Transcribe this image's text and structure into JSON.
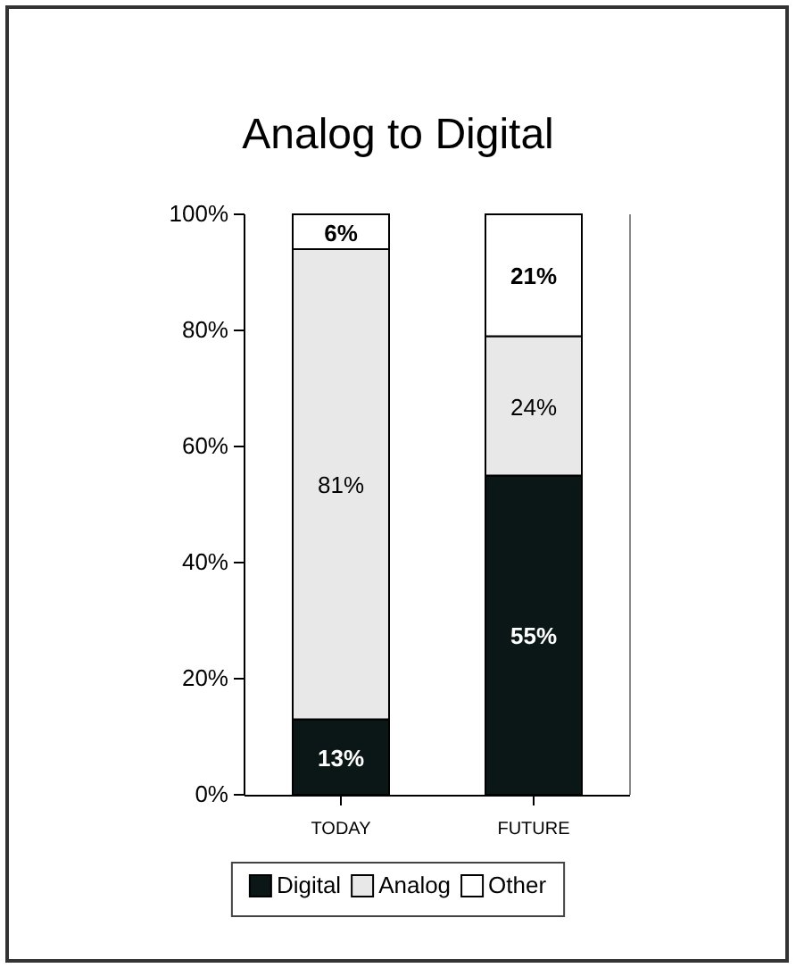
{
  "chart_data": {
    "type": "bar",
    "title": "Analog to Digital",
    "categories": [
      "TODAY",
      "FUTURE"
    ],
    "stacked": true,
    "series": [
      {
        "name": "Digital",
        "color": "#0b1716",
        "values": [
          13,
          55
        ],
        "value_labels": [
          "13%",
          "55%"
        ]
      },
      {
        "name": "Analog",
        "color": "#e8e8e8",
        "values": [
          81,
          24
        ],
        "value_labels": [
          "81%",
          "24%"
        ]
      },
      {
        "name": "Other",
        "color": "#ffffff",
        "values": [
          6,
          21
        ],
        "value_labels": [
          "6%",
          "21%"
        ]
      }
    ],
    "ylim": [
      0,
      100
    ],
    "yticks": [
      {
        "value": 0,
        "label": "0%"
      },
      {
        "value": 20,
        "label": "20%"
      },
      {
        "value": 40,
        "label": "40%"
      },
      {
        "value": 60,
        "label": "60%"
      },
      {
        "value": 80,
        "label": "80%"
      },
      {
        "value": 100,
        "label": "100%"
      }
    ],
    "legend": "bottom",
    "grid": false
  }
}
